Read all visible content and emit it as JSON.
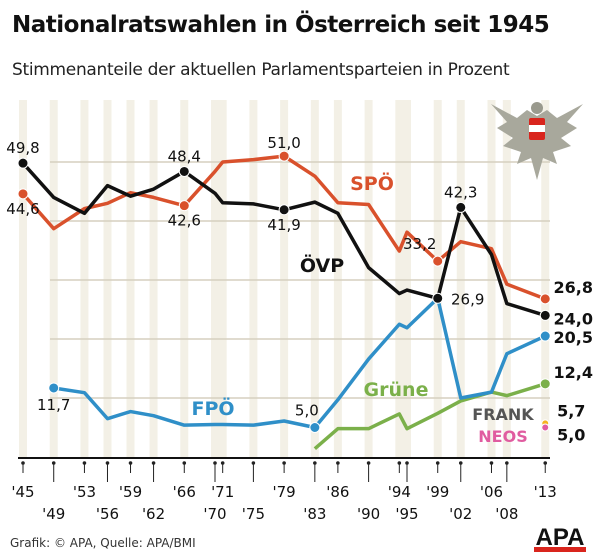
{
  "chart_data": {
    "type": "line",
    "title": "Nationalratswahlen in Österreich seit 1945",
    "subtitle": "Stimmenanteile der aktuellen Parlamentsparteien in Prozent",
    "x": [
      1945,
      1949,
      1953,
      1956,
      1959,
      1962,
      1966,
      1970,
      1971,
      1975,
      1979,
      1983,
      1986,
      1990,
      1994,
      1995,
      1999,
      2002,
      2006,
      2008,
      2013
    ],
    "tick_labels": [
      "'45",
      "'49",
      "'53",
      "'56",
      "'59",
      "'62",
      "'66",
      "'70",
      "'71",
      "'75",
      "'79",
      "'83",
      "'86",
      "'90",
      "'94",
      "'95",
      "'99",
      "'02",
      "'06",
      "'08",
      "'13"
    ],
    "ylim": [
      0,
      55
    ],
    "grid": true,
    "series": [
      {
        "name": "SPÖ",
        "color": "#d9512c",
        "values": [
          44.6,
          38.7,
          42.1,
          43.0,
          44.8,
          44.0,
          42.6,
          48.4,
          50.0,
          50.4,
          51.0,
          47.6,
          43.1,
          42.8,
          34.9,
          38.1,
          33.2,
          36.5,
          35.3,
          29.3,
          26.8
        ],
        "labels": [
          {
            "year": 1945,
            "text": "44,6"
          },
          {
            "year": 1966,
            "text": "42,6"
          },
          {
            "year": 1979,
            "text": "51,0"
          },
          {
            "year": 1999,
            "text": "33,2"
          },
          {
            "year": 2013,
            "text": "26,8"
          }
        ]
      },
      {
        "name": "ÖVP",
        "color": "#111111",
        "values": [
          49.8,
          44.0,
          41.3,
          46.0,
          44.2,
          45.4,
          48.4,
          44.7,
          43.1,
          42.9,
          41.9,
          43.2,
          41.3,
          32.1,
          27.7,
          28.3,
          26.9,
          42.3,
          34.3,
          26.0,
          24.0
        ],
        "labels": [
          {
            "year": 1945,
            "text": "49,8"
          },
          {
            "year": 1966,
            "text": "48,4"
          },
          {
            "year": 1979,
            "text": "41,9"
          },
          {
            "year": 1999,
            "text": "26,9"
          },
          {
            "year": 2002,
            "text": "42,3"
          },
          {
            "year": 2013,
            "text": "24,0"
          }
        ]
      },
      {
        "name": "FPÖ",
        "color": "#2f8fc8",
        "values": [
          null,
          11.7,
          10.9,
          6.5,
          7.7,
          7.0,
          5.4,
          5.5,
          5.5,
          5.4,
          6.1,
          5.0,
          9.7,
          16.6,
          22.5,
          21.9,
          26.9,
          10.0,
          11.0,
          17.5,
          20.5
        ],
        "labels": [
          {
            "year": 1949,
            "text": "11,7"
          },
          {
            "year": 1983,
            "text": "5,0"
          },
          {
            "year": 2013,
            "text": "20,5"
          }
        ]
      },
      {
        "name": "Grüne",
        "color": "#7bb04a",
        "values": [
          null,
          null,
          null,
          null,
          null,
          null,
          null,
          null,
          null,
          null,
          null,
          1.4,
          4.8,
          4.8,
          7.3,
          4.8,
          7.4,
          9.5,
          11.0,
          10.4,
          12.4
        ],
        "labels": [
          {
            "year": 2013,
            "text": "12,4"
          }
        ]
      },
      {
        "name": "FRANK",
        "color": "#f5b31f",
        "values": [
          null,
          null,
          null,
          null,
          null,
          null,
          null,
          null,
          null,
          null,
          null,
          null,
          null,
          null,
          null,
          null,
          null,
          null,
          null,
          null,
          5.7
        ],
        "labels": [
          {
            "year": 2013,
            "text": "5,7"
          }
        ]
      },
      {
        "name": "NEOS",
        "color": "#e05ca0",
        "values": [
          null,
          null,
          null,
          null,
          null,
          null,
          null,
          null,
          null,
          null,
          null,
          null,
          null,
          null,
          null,
          null,
          null,
          null,
          null,
          null,
          5.0
        ],
        "labels": [
          {
            "year": 2013,
            "text": "5,0"
          }
        ]
      }
    ]
  },
  "source": "Grafik: © APA, Quelle: APA/BMI",
  "logo_text": "APA",
  "icons": {
    "emblem": "austrian-eagle-emblem-icon"
  }
}
